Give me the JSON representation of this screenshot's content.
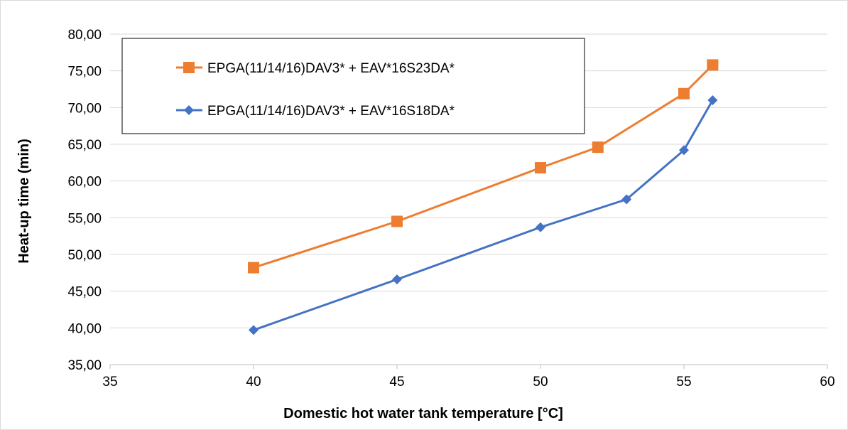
{
  "chart_data": {
    "type": "line",
    "xlabel": "Domestic hot water tank temperature [°C]",
    "ylabel": "Heat-up time (min)",
    "xlim": [
      35,
      60
    ],
    "ylim": [
      35,
      80
    ],
    "x_ticks": [
      "35",
      "40",
      "45",
      "50",
      "55",
      "60"
    ],
    "y_ticks": [
      "35,00",
      "40,00",
      "45,00",
      "50,00",
      "55,00",
      "60,00",
      "65,00",
      "70,00",
      "75,00",
      "80,00"
    ],
    "grid": "horizontal",
    "legend_position": "top-left",
    "series": [
      {
        "name": "EPGA(11/14/16)DAV3* + EAV*16S23DA*",
        "color": "#ED7D31",
        "marker": "square",
        "points": [
          [
            40,
            48.2
          ],
          [
            45,
            54.5
          ],
          [
            50,
            61.8
          ],
          [
            52,
            64.6
          ],
          [
            55,
            71.9
          ],
          [
            56,
            75.8
          ]
        ]
      },
      {
        "name": "EPGA(11/14/16)DAV3* + EAV*16S18DA*",
        "color": "#4472C4",
        "marker": "diamond",
        "points": [
          [
            40,
            39.7
          ],
          [
            45,
            46.6
          ],
          [
            50,
            53.7
          ],
          [
            53,
            57.5
          ],
          [
            55,
            64.2
          ],
          [
            56,
            71.0
          ]
        ]
      }
    ]
  }
}
